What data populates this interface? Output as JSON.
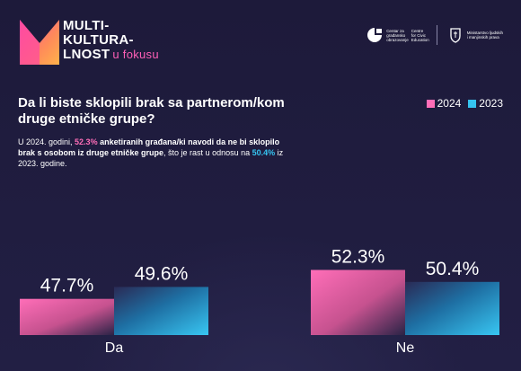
{
  "brand": {
    "lines": [
      "MULTI-",
      "KULTURA-",
      "LNOST"
    ],
    "accent": "u fokusu"
  },
  "partners": {
    "first": [
      "Centar za",
      "građansko",
      "obrazovanje"
    ],
    "second": [
      "Centre",
      "for Civic",
      "Education"
    ],
    "third": [
      "Ministarstvo ljudskih",
      "i manjinskih prava"
    ]
  },
  "question": "Da li biste sklopili brak sa partnerom/kom druge etničke grupe?",
  "description": {
    "p1": "U 2024. godini, ",
    "v1": "52.3%",
    "p2": " anketiranih građana/ki navodi da ne bi sklopilo brak s osobom iz druge etničke grupe",
    "p3": ", što je rast u odnosu na ",
    "v2": "50.4%",
    "p4": " iz 2023. godine."
  },
  "colors": {
    "s2024": "#ff6eb8",
    "s2023": "#35c3f0",
    "background": "#1f1c3d"
  },
  "chart_data": {
    "type": "bar",
    "title": "",
    "xlabel": "",
    "ylabel": "",
    "categories": [
      "Da",
      "Ne"
    ],
    "series": [
      {
        "name": "2024",
        "values": [
          47.7,
          52.3
        ],
        "labels": [
          "47.7%",
          "52.3%"
        ]
      },
      {
        "name": "2023",
        "values": [
          49.6,
          50.4
        ],
        "labels": [
          "49.6%",
          "50.4%"
        ]
      }
    ],
    "legend": "top-right",
    "grid": false
  }
}
